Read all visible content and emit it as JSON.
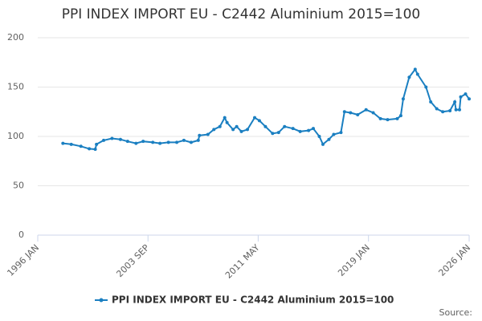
{
  "chart_data": {
    "type": "line",
    "title": "PPI INDEX IMPORT EU - C2442 Aluminium 2015=100",
    "x": [
      "1997 OCT",
      "1998 MAY",
      "1999 JAN",
      "1999 AUG",
      "2000 JAN",
      "2000 FEB",
      "2000 AUG",
      "2001 MAR",
      "2001 OCT",
      "2002 APR",
      "2002 NOV",
      "2003 MAY",
      "2004 JAN",
      "2004 JUL",
      "2005 FEB",
      "2005 SEP",
      "2006 MAR",
      "2006 SEP",
      "2007 MAR",
      "2007 APR",
      "2007 NOV",
      "2008 APR",
      "2008 SEP",
      "2009 JAN",
      "2009 MAR",
      "2009 AUG",
      "2009 NOV",
      "2010 MAR",
      "2010 AUG",
      "2011 FEB",
      "2011 JUN",
      "2011 NOV",
      "2012 MAY",
      "2012 OCT",
      "2013 MAR",
      "2013 OCT",
      "2014 APR",
      "2014 NOV",
      "2015 MAR",
      "2015 AUG",
      "2015 NOV",
      "2016 APR",
      "2016 AUG",
      "2017 FEB",
      "2017 MAY",
      "2017 OCT",
      "2018 APR",
      "2018 NOV",
      "2019 MAY",
      "2019 NOV",
      "2020 MAY",
      "2021 JAN",
      "2021 APR",
      "2021 JUN",
      "2021 NOV",
      "2022 APR",
      "2022 JUN",
      "2023 JAN",
      "2023 MAY",
      "2023 OCT",
      "2024 MAR",
      "2024 SEP",
      "2025 JAN",
      "2025 FEB",
      "2025 MAY",
      "2025 JUN",
      "2025 OCT",
      "2026 JAN"
    ],
    "series": [
      {
        "name": "PPI INDEX IMPORT EU - C2442 Aluminium 2015=100",
        "color": "#1a7fc1",
        "values": [
          93,
          92,
          90,
          87.5,
          87,
          92,
          96,
          98,
          97,
          95,
          93,
          95,
          94,
          93,
          94,
          94,
          96,
          94,
          96,
          101,
          102,
          107,
          110,
          119,
          114,
          107,
          110,
          105,
          107,
          119,
          116,
          110,
          103,
          104,
          110,
          108,
          105,
          106,
          108,
          100,
          92,
          97,
          102,
          104,
          125,
          124,
          122,
          127,
          124,
          118,
          117,
          118,
          121,
          138,
          160,
          168,
          163,
          150,
          135,
          128,
          125,
          126,
          135,
          127,
          127,
          140,
          143,
          138
        ]
      }
    ],
    "xlim": [
      "1996 JAN",
      "2026 JAN"
    ],
    "xticks": [
      "1996 JAN",
      "2003 SEP",
      "2011 MAY",
      "2019 JAN",
      "2026 JAN"
    ],
    "ylim": [
      0,
      200
    ],
    "yticks": [
      0,
      50,
      100,
      150,
      200
    ],
    "grid": true,
    "source_label": "Source:"
  }
}
